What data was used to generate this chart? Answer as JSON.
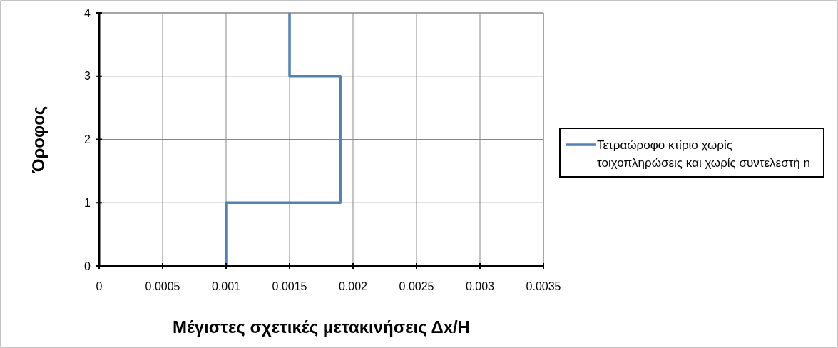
{
  "chart_data": {
    "type": "line",
    "xlabel": "Μέγιστες σχετικές μετακινήσεις Δx/H",
    "ylabel": "Όροφος",
    "x": [
      0.001,
      0.001,
      0.0019,
      0.0019,
      0.0015,
      0.0015
    ],
    "series": [
      {
        "name": "Τετραώροφο κτίριο χωρίς τοιχοπληρώσεις και χωρίς συντελεστή n",
        "color": "#4f81bd",
        "values": [
          0,
          1,
          1,
          3,
          3,
          4
        ]
      }
    ],
    "xlim": [
      0,
      0.0035
    ],
    "xticks": [
      0,
      0.0005,
      0.001,
      0.0015,
      0.002,
      0.0025,
      0.003,
      0.0035
    ],
    "ylim": [
      0,
      4
    ],
    "yticks": [
      0,
      1,
      2,
      3,
      4
    ],
    "grid": true,
    "legend": "right",
    "marker": "none",
    "line_style": "solid"
  }
}
